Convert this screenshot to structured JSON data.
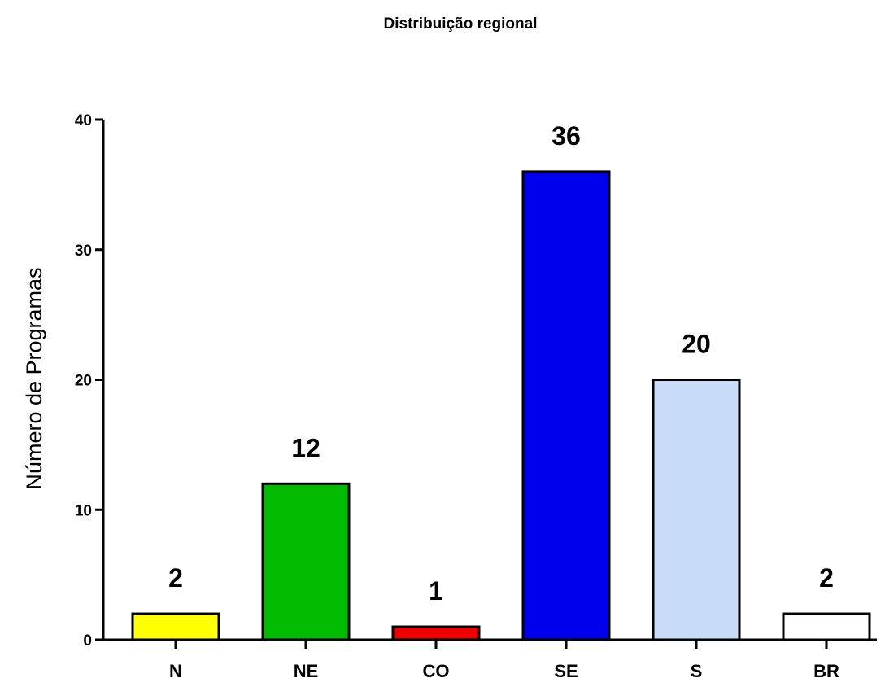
{
  "chart_data": {
    "type": "bar",
    "title": "Distribuição regional",
    "xlabel": "",
    "ylabel": "Número de Programas",
    "categories": [
      "N",
      "NE",
      "CO",
      "SE",
      "S",
      "BR"
    ],
    "values": [
      2,
      12,
      1,
      36,
      20,
      2
    ],
    "data_labels": [
      "2",
      "12",
      "1",
      "36",
      "20",
      "2"
    ],
    "bar_colors": [
      "#ffff00",
      "#00bb00",
      "#ee0000",
      "#0000ee",
      "#c8dcf8",
      "#ffffff"
    ],
    "ylim": [
      0,
      40
    ],
    "yticks": [
      0,
      10,
      20,
      30,
      40
    ],
    "ytick_labels": [
      "0",
      "10",
      "20",
      "30",
      "40"
    ],
    "grid": false,
    "legend": "none"
  }
}
